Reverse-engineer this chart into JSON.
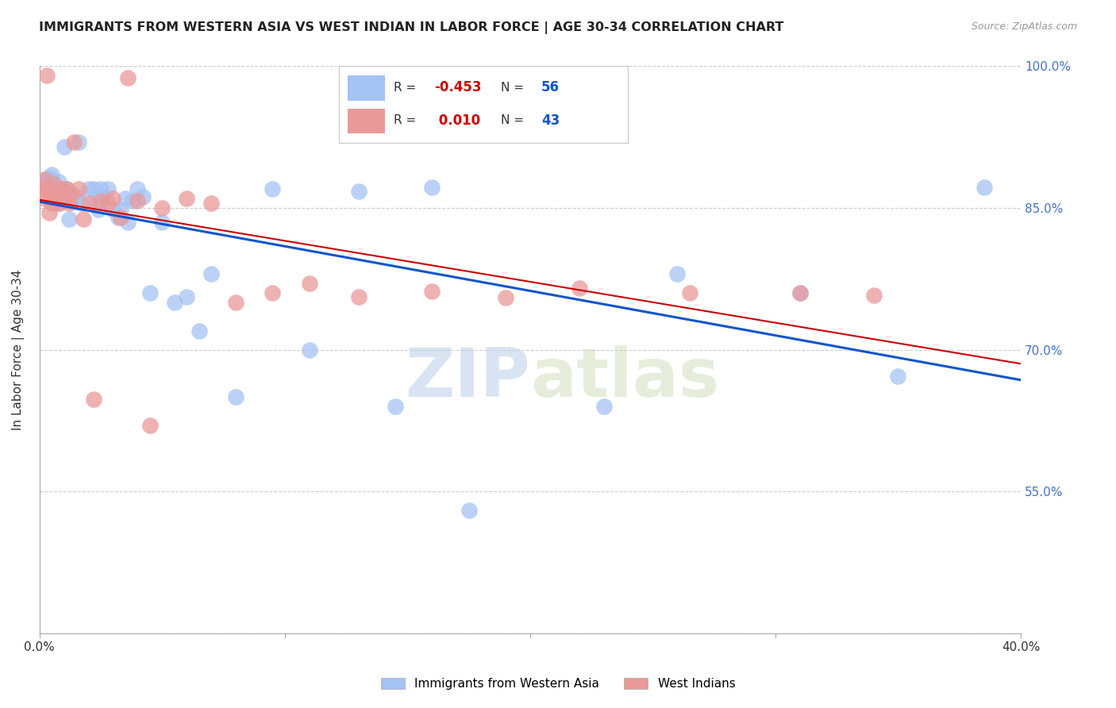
{
  "title": "IMMIGRANTS FROM WESTERN ASIA VS WEST INDIAN IN LABOR FORCE | AGE 30-34 CORRELATION CHART",
  "source": "Source: ZipAtlas.com",
  "ylabel": "In Labor Force | Age 30-34",
  "x_min": 0.0,
  "x_max": 0.4,
  "y_min": 0.4,
  "y_max": 1.0,
  "x_ticks": [
    0.0,
    0.1,
    0.2,
    0.3,
    0.4
  ],
  "y_ticks": [
    0.4,
    0.55,
    0.7,
    0.85,
    1.0
  ],
  "right_y_labels": [
    "",
    "55.0%",
    "70.0%",
    "85.0%",
    "100.0%"
  ],
  "bottom_x_labels": [
    "0.0%",
    "",
    "",
    "",
    "40.0%"
  ],
  "blue_color": "#a4c2f4",
  "pink_color": "#ea9999",
  "blue_line_color": "#1155cc",
  "pink_line_color": "#cc0000",
  "blue_label": "Immigrants from Western Asia",
  "pink_label": "West Indians",
  "blue_R": -0.453,
  "blue_N": 56,
  "pink_R": 0.01,
  "pink_N": 43,
  "watermark_zip": "ZIP",
  "watermark_atlas": "atlas",
  "blue_x": [
    0.002,
    0.003,
    0.003,
    0.004,
    0.004,
    0.005,
    0.005,
    0.005,
    0.006,
    0.006,
    0.007,
    0.007,
    0.008,
    0.008,
    0.009,
    0.009,
    0.01,
    0.011,
    0.012,
    0.013,
    0.015,
    0.016,
    0.017,
    0.02,
    0.022,
    0.023,
    0.024,
    0.025,
    0.026,
    0.028,
    0.03,
    0.032,
    0.033,
    0.035,
    0.036,
    0.038,
    0.04,
    0.042,
    0.045,
    0.05,
    0.055,
    0.06,
    0.065,
    0.07,
    0.08,
    0.095,
    0.11,
    0.13,
    0.145,
    0.16,
    0.175,
    0.23,
    0.26,
    0.31,
    0.35,
    0.385
  ],
  "blue_y": [
    0.87,
    0.875,
    0.88,
    0.878,
    0.882,
    0.885,
    0.872,
    0.868,
    0.865,
    0.86,
    0.862,
    0.858,
    0.855,
    0.878,
    0.87,
    0.868,
    0.915,
    0.87,
    0.838,
    0.858,
    0.862,
    0.92,
    0.855,
    0.87,
    0.87,
    0.855,
    0.848,
    0.87,
    0.862,
    0.87,
    0.848,
    0.84,
    0.848,
    0.86,
    0.835,
    0.858,
    0.87,
    0.862,
    0.76,
    0.835,
    0.75,
    0.756,
    0.72,
    0.78,
    0.65,
    0.87,
    0.7,
    0.868,
    0.64,
    0.872,
    0.53,
    0.64,
    0.78,
    0.76,
    0.672,
    0.872
  ],
  "pink_x": [
    0.001,
    0.002,
    0.002,
    0.003,
    0.003,
    0.004,
    0.004,
    0.005,
    0.005,
    0.006,
    0.006,
    0.007,
    0.008,
    0.009,
    0.01,
    0.011,
    0.012,
    0.013,
    0.014,
    0.016,
    0.018,
    0.02,
    0.022,
    0.025,
    0.028,
    0.03,
    0.033,
    0.036,
    0.04,
    0.045,
    0.05,
    0.06,
    0.07,
    0.08,
    0.095,
    0.11,
    0.13,
    0.16,
    0.19,
    0.22,
    0.265,
    0.31,
    0.34
  ],
  "pink_y": [
    0.87,
    0.88,
    0.86,
    0.99,
    0.87,
    0.862,
    0.845,
    0.855,
    0.865,
    0.855,
    0.875,
    0.862,
    0.855,
    0.87,
    0.858,
    0.87,
    0.855,
    0.865,
    0.92,
    0.87,
    0.838,
    0.855,
    0.648,
    0.858,
    0.855,
    0.86,
    0.84,
    0.988,
    0.858,
    0.62,
    0.85,
    0.86,
    0.855,
    0.75,
    0.76,
    0.77,
    0.756,
    0.762,
    0.755,
    0.765,
    0.76,
    0.76,
    0.758
  ]
}
